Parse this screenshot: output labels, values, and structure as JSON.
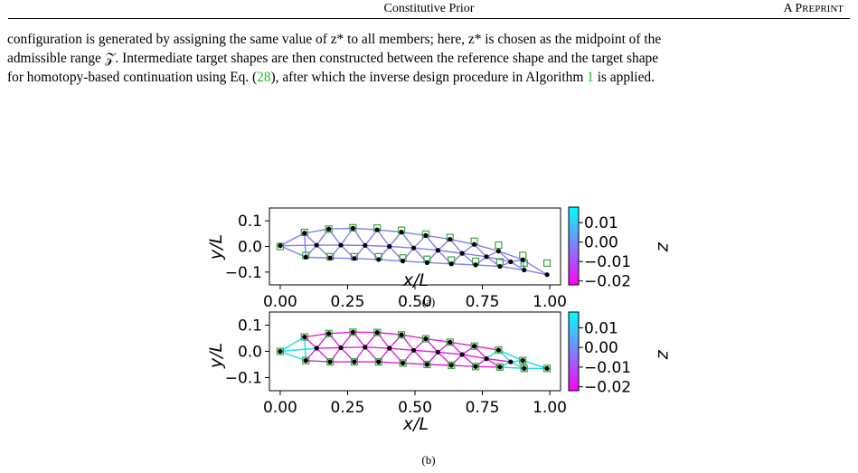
{
  "header": {
    "title": "Constitutive Prior",
    "right_prefix": "A P",
    "right_rest": "REPRINT"
  },
  "paragraph": {
    "line1": "configuration is generated by assigning the same value of z* to all members; here, z* is chosen as the midpoint of the",
    "line2": "admissible range 𝒵. Intermediate target shapes are then constructed between the reference shape and the target shape",
    "line3_a": "for homotopy-based continuation using Eq. (",
    "line3_ref": "28",
    "line3_b": "), after which the inverse design procedure in Algorithm ",
    "line3_alg": "1",
    "line3_c": " is applied."
  },
  "figures": [
    {
      "caption": "(a)",
      "xlabel": "x/L",
      "ylabel": "y/L",
      "colorbar_label": "z",
      "xticks": [
        "0.00",
        "0.25",
        "0.50",
        "0.75",
        "1.00"
      ],
      "yticks": [
        "0.1",
        "0.0",
        "−0.1"
      ],
      "cbar_ticks": [
        "0.01",
        "0.00",
        "−0.01",
        "−0.02"
      ]
    },
    {
      "caption": "(b)",
      "xlabel": "x/L",
      "ylabel": "y/L",
      "colorbar_label": "z",
      "xticks": [
        "0.00",
        "0.25",
        "0.50",
        "0.75",
        "1.00"
      ],
      "yticks": [
        "0.1",
        "0.0",
        "−0.1"
      ],
      "cbar_ticks": [
        "0.01",
        "0.00",
        "−0.01",
        "−0.02"
      ]
    }
  ],
  "chart_data": [
    {
      "type": "scatter",
      "title": "",
      "xlabel": "x/L",
      "ylabel": "y/L",
      "xlim": [
        -0.04,
        1.04
      ],
      "ylim": [
        -0.15,
        0.15
      ],
      "colorbar": {
        "label": "z",
        "range": [
          -0.022,
          0.018
        ],
        "colors": [
          "#ff00ff",
          "#00ffff"
        ]
      },
      "member_color": "#8080f0",
      "nodes": [
        [
          0.0,
          0.003
        ],
        [
          0.09,
          0.052
        ],
        [
          0.18,
          0.068
        ],
        [
          0.27,
          0.071
        ],
        [
          0.36,
          0.065
        ],
        [
          0.45,
          0.056
        ],
        [
          0.54,
          0.043
        ],
        [
          0.63,
          0.028
        ],
        [
          0.72,
          0.008
        ],
        [
          0.81,
          -0.018
        ],
        [
          0.9,
          -0.052
        ],
        [
          0.99,
          -0.11
        ],
        [
          0.095,
          -0.042
        ],
        [
          0.185,
          -0.045
        ],
        [
          0.275,
          -0.047
        ],
        [
          0.365,
          -0.051
        ],
        [
          0.455,
          -0.057
        ],
        [
          0.545,
          -0.063
        ],
        [
          0.635,
          -0.068
        ],
        [
          0.725,
          -0.072
        ],
        [
          0.815,
          -0.078
        ],
        [
          0.905,
          -0.092
        ],
        [
          0.135,
          0.005
        ],
        [
          0.225,
          0.005
        ],
        [
          0.315,
          0.004
        ],
        [
          0.405,
          0.0
        ],
        [
          0.495,
          -0.006
        ],
        [
          0.585,
          -0.015
        ],
        [
          0.675,
          -0.027
        ],
        [
          0.765,
          -0.04
        ],
        [
          0.855,
          -0.06
        ]
      ],
      "target_nodes": [
        [
          0.0,
          0.0
        ],
        [
          0.09,
          0.055
        ],
        [
          0.18,
          0.068
        ],
        [
          0.27,
          0.073
        ],
        [
          0.36,
          0.072
        ],
        [
          0.45,
          0.063
        ],
        [
          0.54,
          0.048
        ],
        [
          0.63,
          0.035
        ],
        [
          0.72,
          0.02
        ],
        [
          0.81,
          0.005
        ],
        [
          0.9,
          -0.035
        ],
        [
          0.99,
          -0.065
        ],
        [
          0.095,
          -0.035
        ],
        [
          0.185,
          -0.04
        ],
        [
          0.275,
          -0.04
        ],
        [
          0.365,
          -0.04
        ],
        [
          0.455,
          -0.045
        ],
        [
          0.545,
          -0.05
        ],
        [
          0.635,
          -0.053
        ],
        [
          0.725,
          -0.058
        ],
        [
          0.815,
          -0.06
        ],
        [
          0.905,
          -0.065
        ]
      ]
    },
    {
      "type": "scatter",
      "title": "",
      "xlabel": "x/L",
      "ylabel": "y/L",
      "xlim": [
        -0.04,
        1.04
      ],
      "ylim": [
        -0.15,
        0.15
      ],
      "colorbar": {
        "label": "z",
        "range": [
          -0.022,
          0.018
        ],
        "colors": [
          "#ff00ff",
          "#00ffff"
        ]
      },
      "member_color": "#e020e0",
      "cyan_member_color": "#20d8e8",
      "nodes": [
        [
          0.0,
          0.0
        ],
        [
          0.09,
          0.055
        ],
        [
          0.18,
          0.068
        ],
        [
          0.27,
          0.073
        ],
        [
          0.36,
          0.072
        ],
        [
          0.45,
          0.063
        ],
        [
          0.54,
          0.048
        ],
        [
          0.63,
          0.035
        ],
        [
          0.72,
          0.02
        ],
        [
          0.81,
          0.005
        ],
        [
          0.9,
          -0.035
        ],
        [
          0.99,
          -0.065
        ],
        [
          0.095,
          -0.035
        ],
        [
          0.185,
          -0.04
        ],
        [
          0.275,
          -0.04
        ],
        [
          0.365,
          -0.04
        ],
        [
          0.455,
          -0.045
        ],
        [
          0.545,
          -0.05
        ],
        [
          0.635,
          -0.053
        ],
        [
          0.725,
          -0.058
        ],
        [
          0.815,
          -0.06
        ],
        [
          0.905,
          -0.065
        ],
        [
          0.135,
          0.012
        ],
        [
          0.225,
          0.014
        ],
        [
          0.315,
          0.016
        ],
        [
          0.405,
          0.012
        ],
        [
          0.495,
          0.004
        ],
        [
          0.585,
          -0.003
        ],
        [
          0.675,
          -0.012
        ],
        [
          0.765,
          -0.028
        ],
        [
          0.855,
          -0.04
        ]
      ],
      "target_nodes": [
        [
          0.0,
          0.0
        ],
        [
          0.09,
          0.055
        ],
        [
          0.18,
          0.068
        ],
        [
          0.27,
          0.073
        ],
        [
          0.36,
          0.072
        ],
        [
          0.45,
          0.063
        ],
        [
          0.54,
          0.048
        ],
        [
          0.63,
          0.035
        ],
        [
          0.72,
          0.02
        ],
        [
          0.81,
          0.005
        ],
        [
          0.9,
          -0.035
        ],
        [
          0.99,
          -0.065
        ],
        [
          0.095,
          -0.035
        ],
        [
          0.185,
          -0.04
        ],
        [
          0.275,
          -0.04
        ],
        [
          0.365,
          -0.04
        ],
        [
          0.455,
          -0.045
        ],
        [
          0.545,
          -0.05
        ],
        [
          0.635,
          -0.053
        ],
        [
          0.725,
          -0.058
        ],
        [
          0.815,
          -0.06
        ],
        [
          0.905,
          -0.065
        ]
      ]
    }
  ]
}
